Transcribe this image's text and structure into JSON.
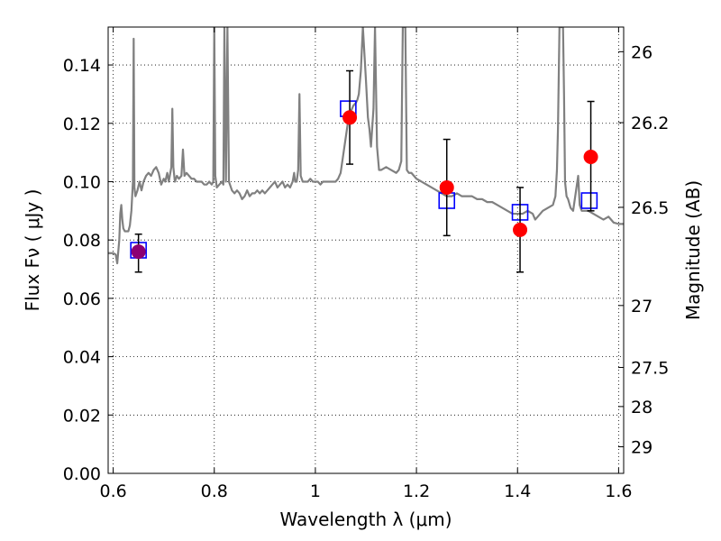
{
  "chart_data": {
    "type": "scatter",
    "xlabel": "Wavelength  λ (μm)",
    "ylabel": "Flux  Fν  ( μJy )",
    "ylabel_right": "Magnitude (AB)",
    "xlim": [
      0.59,
      1.61
    ],
    "ylim": [
      0.0,
      0.153
    ],
    "grid": true,
    "x_ticks": [
      0.6,
      0.8,
      1.0,
      1.2,
      1.4,
      1.6
    ],
    "x_tick_labels": [
      "0.6",
      "0.8",
      "1",
      "1.2",
      "1.4",
      "1.6"
    ],
    "y_ticks": [
      0.0,
      0.02,
      0.04,
      0.06,
      0.08,
      0.1,
      0.12,
      0.14
    ],
    "y_tick_labels": [
      "0.00",
      "0.02",
      "0.04",
      "0.06",
      "0.08",
      "0.10",
      "0.12",
      "0.14"
    ],
    "right_ticks": [
      {
        "mag": 26.0,
        "label": "26"
      },
      {
        "mag": 26.2,
        "label": "26.2"
      },
      {
        "mag": 26.5,
        "label": "26.5"
      },
      {
        "mag": 27.0,
        "label": "27"
      },
      {
        "mag": 27.5,
        "label": "27.5"
      },
      {
        "mag": 28.0,
        "label": "28"
      },
      {
        "mag": 29.0,
        "label": "29"
      }
    ],
    "colors": {
      "model": "#808080",
      "observed": "#ff0000",
      "synthetic": "#0000ff",
      "errorbar": "#000000",
      "grid": "#000000"
    },
    "observed": [
      {
        "x": 0.65,
        "y": 0.076,
        "yerr_low": 0.069,
        "yerr_high": 0.082
      },
      {
        "x": 1.068,
        "y": 0.122,
        "yerr_low": 0.106,
        "yerr_high": 0.138
      },
      {
        "x": 1.26,
        "y": 0.098,
        "yerr_low": 0.0815,
        "yerr_high": 0.1145
      },
      {
        "x": 1.405,
        "y": 0.0835,
        "yerr_low": 0.069,
        "yerr_high": 0.098
      },
      {
        "x": 1.545,
        "y": 0.1085,
        "yerr_low": 0.09,
        "yerr_high": 0.1275
      }
    ],
    "synthetic": [
      {
        "x": 0.65,
        "y": 0.0765
      },
      {
        "x": 1.065,
        "y": 0.125
      },
      {
        "x": 1.26,
        "y": 0.0935
      },
      {
        "x": 1.405,
        "y": 0.0895
      },
      {
        "x": 1.542,
        "y": 0.0935
      }
    ],
    "model_spectrum": [
      [
        0.59,
        0.0755
      ],
      [
        0.6,
        0.0755
      ],
      [
        0.605,
        0.075
      ],
      [
        0.608,
        0.072
      ],
      [
        0.612,
        0.08
      ],
      [
        0.614,
        0.089
      ],
      [
        0.616,
        0.092
      ],
      [
        0.618,
        0.087
      ],
      [
        0.62,
        0.084
      ],
      [
        0.623,
        0.083
      ],
      [
        0.626,
        0.083
      ],
      [
        0.63,
        0.083
      ],
      [
        0.633,
        0.085
      ],
      [
        0.636,
        0.09
      ],
      [
        0.639,
        0.1
      ],
      [
        0.6405,
        0.149
      ],
      [
        0.642,
        0.098
      ],
      [
        0.644,
        0.095
      ],
      [
        0.648,
        0.097
      ],
      [
        0.652,
        0.1
      ],
      [
        0.656,
        0.097
      ],
      [
        0.66,
        0.1
      ],
      [
        0.665,
        0.102
      ],
      [
        0.67,
        0.103
      ],
      [
        0.675,
        0.102
      ],
      [
        0.68,
        0.104
      ],
      [
        0.685,
        0.105
      ],
      [
        0.69,
        0.103
      ],
      [
        0.695,
        0.099
      ],
      [
        0.7,
        0.101
      ],
      [
        0.703,
        0.1
      ],
      [
        0.707,
        0.103
      ],
      [
        0.71,
        0.1
      ],
      [
        0.715,
        0.105
      ],
      [
        0.717,
        0.125
      ],
      [
        0.719,
        0.105
      ],
      [
        0.722,
        0.1
      ],
      [
        0.726,
        0.102
      ],
      [
        0.73,
        0.101
      ],
      [
        0.735,
        0.102
      ],
      [
        0.738,
        0.111
      ],
      [
        0.741,
        0.102
      ],
      [
        0.745,
        0.103
      ],
      [
        0.75,
        0.102
      ],
      [
        0.755,
        0.101
      ],
      [
        0.76,
        0.101
      ],
      [
        0.765,
        0.1
      ],
      [
        0.77,
        0.1
      ],
      [
        0.775,
        0.1
      ],
      [
        0.78,
        0.099
      ],
      [
        0.785,
        0.099
      ],
      [
        0.79,
        0.1
      ],
      [
        0.795,
        0.099
      ],
      [
        0.798,
        0.1
      ],
      [
        0.8,
        0.153
      ],
      [
        0.802,
        0.102
      ],
      [
        0.805,
        0.098
      ],
      [
        0.81,
        0.099
      ],
      [
        0.815,
        0.1
      ],
      [
        0.818,
        0.099
      ],
      [
        0.82,
        0.153
      ],
      [
        0.823,
        0.1
      ],
      [
        0.826,
        0.153
      ],
      [
        0.829,
        0.1
      ],
      [
        0.835,
        0.097
      ],
      [
        0.84,
        0.096
      ],
      [
        0.845,
        0.097
      ],
      [
        0.85,
        0.096
      ],
      [
        0.855,
        0.094
      ],
      [
        0.86,
        0.095
      ],
      [
        0.865,
        0.097
      ],
      [
        0.87,
        0.095
      ],
      [
        0.875,
        0.096
      ],
      [
        0.88,
        0.096
      ],
      [
        0.885,
        0.097
      ],
      [
        0.89,
        0.096
      ],
      [
        0.895,
        0.097
      ],
      [
        0.9,
        0.096
      ],
      [
        0.905,
        0.097
      ],
      [
        0.91,
        0.098
      ],
      [
        0.915,
        0.099
      ],
      [
        0.92,
        0.1
      ],
      [
        0.925,
        0.098
      ],
      [
        0.93,
        0.099
      ],
      [
        0.935,
        0.1
      ],
      [
        0.94,
        0.098
      ],
      [
        0.945,
        0.099
      ],
      [
        0.95,
        0.098
      ],
      [
        0.955,
        0.1
      ],
      [
        0.958,
        0.103
      ],
      [
        0.96,
        0.1
      ],
      [
        0.963,
        0.1
      ],
      [
        0.966,
        0.104
      ],
      [
        0.9685,
        0.13
      ],
      [
        0.971,
        0.102
      ],
      [
        0.975,
        0.1
      ],
      [
        0.98,
        0.1
      ],
      [
        0.985,
        0.1
      ],
      [
        0.99,
        0.101
      ],
      [
        0.995,
        0.1
      ],
      [
        1.0,
        0.1
      ],
      [
        1.005,
        0.1
      ],
      [
        1.01,
        0.099
      ],
      [
        1.015,
        0.1
      ],
      [
        1.02,
        0.1
      ],
      [
        1.025,
        0.1
      ],
      [
        1.03,
        0.1
      ],
      [
        1.035,
        0.1
      ],
      [
        1.04,
        0.1
      ],
      [
        1.045,
        0.101
      ],
      [
        1.05,
        0.103
      ],
      [
        1.055,
        0.109
      ],
      [
        1.06,
        0.115
      ],
      [
        1.065,
        0.121
      ],
      [
        1.07,
        0.124
      ],
      [
        1.075,
        0.126
      ],
      [
        1.08,
        0.127
      ],
      [
        1.083,
        0.128
      ],
      [
        1.086,
        0.13
      ],
      [
        1.09,
        0.138
      ],
      [
        1.094,
        0.153
      ],
      [
        1.1,
        0.135
      ],
      [
        1.104,
        0.122
      ],
      [
        1.107,
        0.118
      ],
      [
        1.11,
        0.112
      ],
      [
        1.115,
        0.125
      ],
      [
        1.118,
        0.153
      ],
      [
        1.122,
        0.112
      ],
      [
        1.126,
        0.104
      ],
      [
        1.13,
        0.104
      ],
      [
        1.14,
        0.105
      ],
      [
        1.15,
        0.104
      ],
      [
        1.16,
        0.103
      ],
      [
        1.165,
        0.104
      ],
      [
        1.17,
        0.107
      ],
      [
        1.173,
        0.153
      ],
      [
        1.178,
        0.153
      ],
      [
        1.181,
        0.104
      ],
      [
        1.185,
        0.103
      ],
      [
        1.19,
        0.103
      ],
      [
        1.2,
        0.101
      ],
      [
        1.21,
        0.1
      ],
      [
        1.22,
        0.099
      ],
      [
        1.23,
        0.098
      ],
      [
        1.24,
        0.097
      ],
      [
        1.25,
        0.096
      ],
      [
        1.26,
        0.095
      ],
      [
        1.27,
        0.095
      ],
      [
        1.28,
        0.096
      ],
      [
        1.29,
        0.095
      ],
      [
        1.3,
        0.095
      ],
      [
        1.31,
        0.095
      ],
      [
        1.32,
        0.094
      ],
      [
        1.33,
        0.094
      ],
      [
        1.34,
        0.093
      ],
      [
        1.35,
        0.093
      ],
      [
        1.36,
        0.092
      ],
      [
        1.37,
        0.091
      ],
      [
        1.38,
        0.09
      ],
      [
        1.39,
        0.089
      ],
      [
        1.4,
        0.089
      ],
      [
        1.41,
        0.089
      ],
      [
        1.42,
        0.09
      ],
      [
        1.43,
        0.089
      ],
      [
        1.435,
        0.087
      ],
      [
        1.44,
        0.088
      ],
      [
        1.45,
        0.09
      ],
      [
        1.46,
        0.091
      ],
      [
        1.47,
        0.092
      ],
      [
        1.475,
        0.095
      ],
      [
        1.478,
        0.104
      ],
      [
        1.48,
        0.118
      ],
      [
        1.483,
        0.153
      ],
      [
        1.49,
        0.153
      ],
      [
        1.492,
        0.13
      ],
      [
        1.494,
        0.1
      ],
      [
        1.497,
        0.095
      ],
      [
        1.5,
        0.094
      ],
      [
        1.505,
        0.091
      ],
      [
        1.51,
        0.09
      ],
      [
        1.515,
        0.096
      ],
      [
        1.52,
        0.102
      ],
      [
        1.523,
        0.092
      ],
      [
        1.527,
        0.09
      ],
      [
        1.53,
        0.09
      ],
      [
        1.54,
        0.09
      ],
      [
        1.55,
        0.089
      ],
      [
        1.56,
        0.088
      ],
      [
        1.57,
        0.087
      ],
      [
        1.58,
        0.088
      ],
      [
        1.585,
        0.087
      ],
      [
        1.59,
        0.086
      ],
      [
        1.6,
        0.0855
      ],
      [
        1.61,
        0.0855
      ]
    ]
  }
}
